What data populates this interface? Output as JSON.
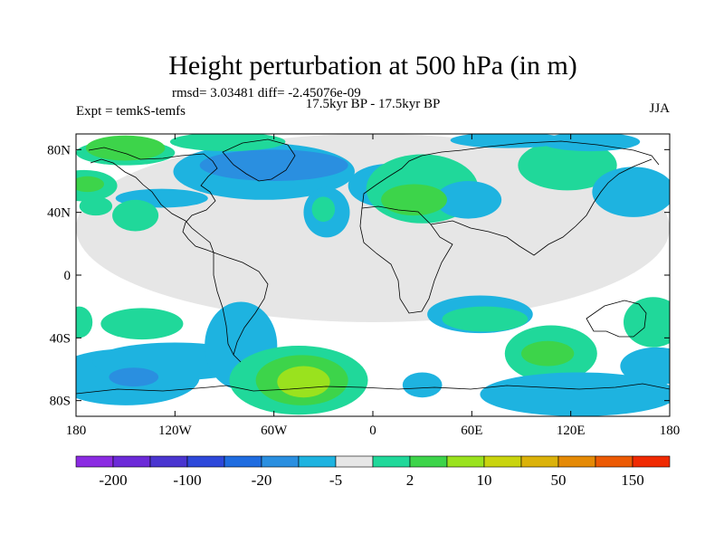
{
  "chart_data": {
    "type": "contour-map",
    "title": "Height perturbation at 500 hPa (in m)",
    "stats_label": "rmsd= 3.03481 diff= -2.45076e-09",
    "left_label": "Expt = temkS-temfs",
    "center_label": "17.5kyr BP - 17.5kyr BP",
    "right_label": "JJA",
    "x_ticks": [
      "180",
      "120W",
      "60W",
      "0",
      "60E",
      "120E",
      "180"
    ],
    "y_ticks": [
      "80N",
      "40N",
      "0",
      "40S",
      "80S"
    ],
    "x_tick_values": [
      -180,
      -120,
      -60,
      0,
      60,
      120,
      180
    ],
    "y_tick_values": [
      80,
      40,
      0,
      -40,
      -80
    ],
    "xlim": [
      -180,
      180
    ],
    "ylim": [
      -90,
      90
    ],
    "colorbar": {
      "colors": [
        "#8b2be2",
        "#6c2ad8",
        "#4a35d0",
        "#2d48da",
        "#1f6ce0",
        "#2a8fe0",
        "#1eb3e0",
        "#e6e6e6",
        "#20d89a",
        "#3dd44a",
        "#9ae21e",
        "#c9d40e",
        "#dbb20a",
        "#e58a06",
        "#ec5a04",
        "#f02a02"
      ],
      "labels": [
        "-200",
        "-100",
        "-20",
        "-5",
        "2",
        "10",
        "50",
        "150"
      ]
    },
    "features": [
      {
        "lon": 0,
        "lat": 30,
        "rx": 180,
        "ry": 60,
        "level": 7
      },
      {
        "lon": -150,
        "lat": 81,
        "rx": 24,
        "ry": 8,
        "level": 9
      },
      {
        "lon": -150,
        "lat": 78,
        "rx": 30,
        "ry": 8,
        "level": 8
      },
      {
        "lon": -175,
        "lat": 57,
        "rx": 20,
        "ry": 10,
        "level": 8
      },
      {
        "lon": -173,
        "lat": 58,
        "rx": 10,
        "ry": 5,
        "level": 9
      },
      {
        "lon": -168,
        "lat": 44,
        "rx": 10,
        "ry": 6,
        "level": 8
      },
      {
        "lon": -66,
        "lat": 66,
        "rx": 55,
        "ry": 18,
        "level": 6
      },
      {
        "lon": -60,
        "lat": 70,
        "rx": 45,
        "ry": 10,
        "level": 5
      },
      {
        "lon": -128,
        "lat": 49,
        "rx": 28,
        "ry": 6,
        "level": 6
      },
      {
        "lon": -144,
        "lat": 38,
        "rx": 14,
        "ry": 10,
        "level": 8
      },
      {
        "lon": -28,
        "lat": 40,
        "rx": 14,
        "ry": 16,
        "level": 6
      },
      {
        "lon": -30,
        "lat": 42,
        "rx": 7,
        "ry": 8,
        "level": 8
      },
      {
        "lon": 10,
        "lat": 57,
        "rx": 25,
        "ry": 14,
        "level": 6
      },
      {
        "lon": 30,
        "lat": 55,
        "rx": 34,
        "ry": 22,
        "level": 8
      },
      {
        "lon": 25,
        "lat": 48,
        "rx": 20,
        "ry": 10,
        "level": 9
      },
      {
        "lon": 58,
        "lat": 48,
        "rx": 20,
        "ry": 12,
        "level": 6
      },
      {
        "lon": 118,
        "lat": 70,
        "rx": 30,
        "ry": 16,
        "level": 8
      },
      {
        "lon": 158,
        "lat": 53,
        "rx": 25,
        "ry": 16,
        "level": 6
      },
      {
        "lon": 82,
        "lat": 86,
        "rx": 35,
        "ry": 5,
        "level": 6
      },
      {
        "lon": 132,
        "lat": 85,
        "rx": 30,
        "ry": 6,
        "level": 6
      },
      {
        "lon": -88,
        "lat": 85,
        "rx": 35,
        "ry": 6,
        "level": 8
      },
      {
        "lon": -140,
        "lat": -31,
        "rx": 25,
        "ry": 10,
        "level": 8
      },
      {
        "lon": -178,
        "lat": -30,
        "rx": 8,
        "ry": 10,
        "level": 8
      },
      {
        "lon": -150,
        "lat": -65,
        "rx": 45,
        "ry": 18,
        "level": 6
      },
      {
        "lon": -145,
        "lat": -65,
        "rx": 15,
        "ry": 6,
        "level": 5
      },
      {
        "lon": -120,
        "lat": -55,
        "rx": 50,
        "ry": 12,
        "level": 6
      },
      {
        "lon": -80,
        "lat": -45,
        "rx": 22,
        "ry": 28,
        "level": 6
      },
      {
        "lon": -45,
        "lat": -67,
        "rx": 42,
        "ry": 22,
        "level": 8
      },
      {
        "lon": -43,
        "lat": -67,
        "rx": 28,
        "ry": 16,
        "level": 9
      },
      {
        "lon": -42,
        "lat": -68,
        "rx": 16,
        "ry": 10,
        "level": 10
      },
      {
        "lon": 30,
        "lat": -70,
        "rx": 12,
        "ry": 8,
        "level": 6
      },
      {
        "lon": 65,
        "lat": -25,
        "rx": 32,
        "ry": 12,
        "level": 6
      },
      {
        "lon": 68,
        "lat": -28,
        "rx": 26,
        "ry": 8,
        "level": 8
      },
      {
        "lon": 108,
        "lat": -50,
        "rx": 28,
        "ry": 18,
        "level": 8
      },
      {
        "lon": 106,
        "lat": -50,
        "rx": 16,
        "ry": 8,
        "level": 9
      },
      {
        "lon": 125,
        "lat": -76,
        "rx": 60,
        "ry": 14,
        "level": 6
      },
      {
        "lon": 172,
        "lat": -58,
        "rx": 22,
        "ry": 12,
        "level": 6
      },
      {
        "lon": 170,
        "lat": -30,
        "rx": 18,
        "ry": 16,
        "level": 8
      }
    ]
  }
}
